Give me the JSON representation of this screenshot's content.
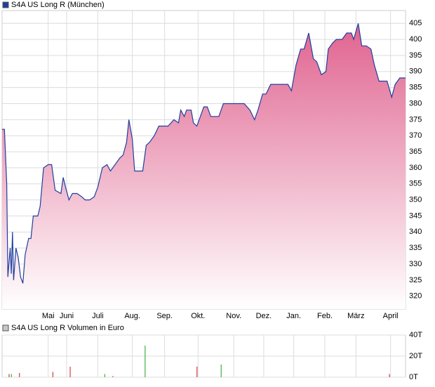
{
  "chart_data": [
    {
      "type": "area",
      "title": "S4A US Long R (München)",
      "color": "#1f3f9f",
      "fill_top": "#e0638f",
      "x": [
        0,
        2,
        4,
        5,
        7,
        8,
        9,
        10,
        12,
        14,
        16,
        18,
        20,
        23,
        25,
        27,
        31,
        33,
        36,
        40,
        43,
        46,
        51,
        53,
        55,
        58,
        61,
        65,
        69,
        72,
        76,
        80,
        83,
        87,
        91,
        94,
        98,
        102,
        105,
        108,
        110,
        113,
        115,
        117,
        122,
        125,
        128,
        132,
        136,
        139,
        144,
        149,
        153,
        155,
        158,
        160,
        164,
        166,
        169,
        171,
        175,
        178,
        181,
        184,
        188,
        192,
        197,
        201,
        205,
        210,
        215,
        219,
        222,
        226,
        229,
        233,
        237,
        242,
        248,
        251,
        255,
        259,
        262,
        266,
        270,
        273,
        277,
        281,
        283,
        287,
        290,
        295,
        299,
        303,
        305,
        309,
        312,
        316,
        320,
        323,
        327,
        331,
        334,
        338,
        341,
        345,
        350
      ],
      "values": [
        372,
        372,
        355,
        326,
        335,
        327,
        340,
        325,
        335,
        332,
        326,
        324,
        333,
        338,
        338,
        345,
        345,
        348,
        360,
        361,
        361,
        353,
        352,
        357,
        354,
        350,
        352,
        352,
        351,
        350,
        350,
        351,
        354,
        360,
        361,
        359,
        361,
        363,
        364,
        368,
        375,
        369,
        359,
        359,
        359,
        367,
        368,
        370,
        373,
        373,
        373,
        375,
        374,
        378,
        376,
        378,
        378,
        374,
        373,
        375,
        379,
        379,
        376,
        376,
        376,
        380,
        380,
        380,
        380,
        380,
        378,
        375,
        378,
        383,
        383,
        386,
        386,
        386,
        386,
        384,
        392,
        397,
        397,
        402,
        394,
        393,
        389,
        390,
        397,
        399,
        400,
        400,
        402,
        402,
        400,
        405,
        398,
        398,
        397,
        392,
        387,
        387,
        387,
        382,
        386,
        388,
        388
      ],
      "xlim": [
        0,
        350
      ],
      "xticks": [
        {
          "value": 40,
          "label": "Mai"
        },
        {
          "value": 56,
          "label": "Juni"
        },
        {
          "value": 83,
          "label": "Juli"
        },
        {
          "value": 113,
          "label": "Aug."
        },
        {
          "value": 141,
          "label": "Sep."
        },
        {
          "value": 170,
          "label": "Okt."
        },
        {
          "value": 201,
          "label": "Nov."
        },
        {
          "value": 227,
          "label": "Dez."
        },
        {
          "value": 253,
          "label": "Jan."
        },
        {
          "value": 280,
          "label": "Feb."
        },
        {
          "value": 307,
          "label": "März"
        },
        {
          "value": 337,
          "label": "April"
        }
      ],
      "ylim": [
        316,
        409
      ],
      "yticks": [
        320,
        325,
        330,
        335,
        340,
        345,
        350,
        355,
        360,
        365,
        370,
        375,
        380,
        385,
        390,
        395,
        400,
        405
      ],
      "grid": true
    },
    {
      "type": "bar",
      "title": "S4A US Long R Volumen in Euro",
      "color": "#c8c8c8",
      "x": [
        6,
        8,
        15,
        44,
        59,
        89,
        96,
        124,
        169,
        190,
        336
      ],
      "values": [
        3,
        3,
        4,
        5,
        10,
        3,
        1,
        30,
        10,
        12,
        3
      ],
      "colors": [
        "#d04040",
        "#40b040",
        "#d04040",
        "#d04040",
        "#d04040",
        "#40b040",
        "#d04040",
        "#40b040",
        "#d04040",
        "#40b040",
        "#d04040"
      ],
      "xlim": [
        0,
        350
      ],
      "xticks": [
        40,
        56,
        83,
        113,
        141,
        170,
        201,
        227,
        253,
        280,
        307,
        337
      ],
      "ylim": [
        0,
        40
      ],
      "yticks": [
        {
          "value": 0,
          "label": "0T"
        },
        {
          "value": 20,
          "label": "20T"
        },
        {
          "value": 40,
          "label": "40T"
        }
      ],
      "grid": true
    }
  ]
}
